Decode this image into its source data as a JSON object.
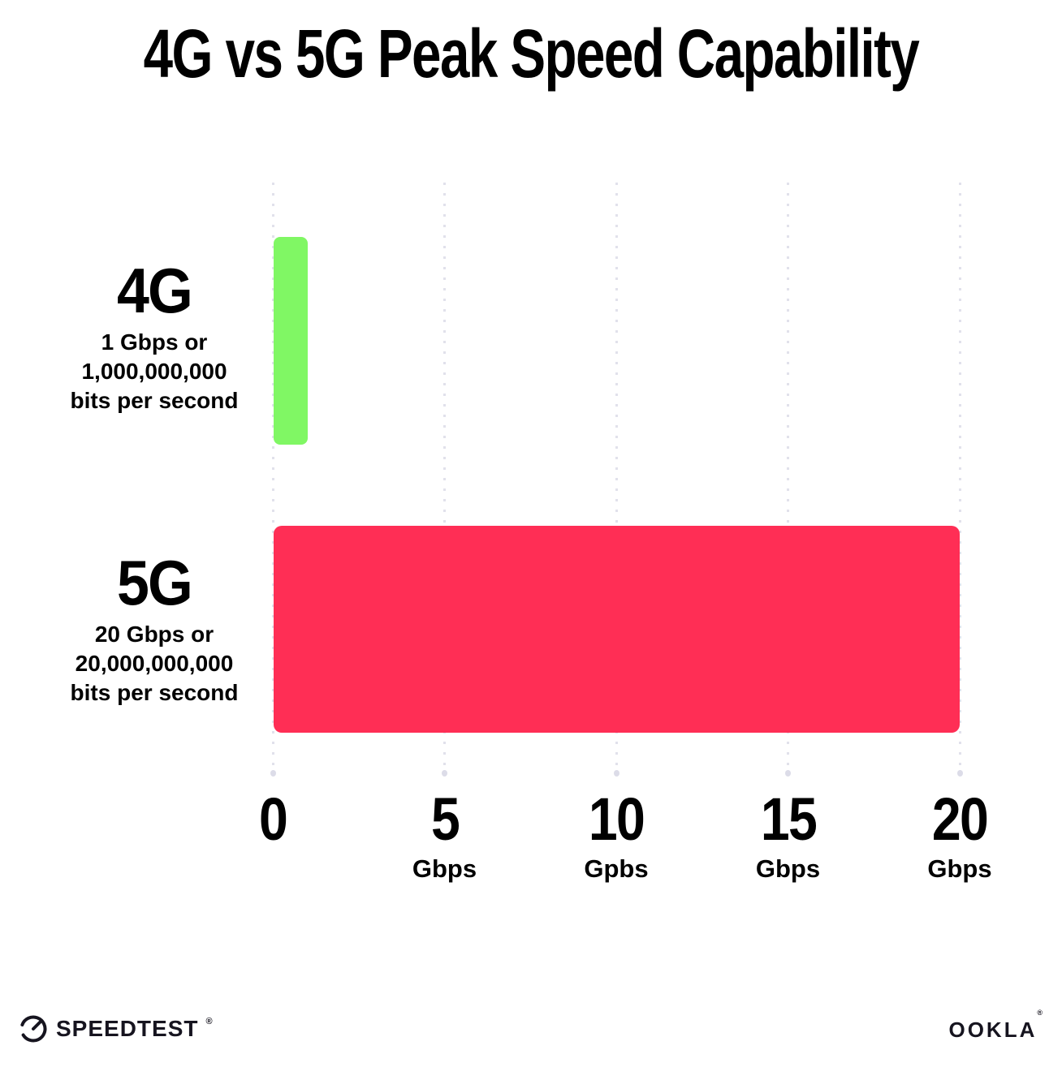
{
  "title": "4G vs 5G Peak Speed Capability",
  "chart_data": {
    "type": "bar",
    "orientation": "horizontal",
    "title": "4G vs 5G Peak Speed Capability",
    "categories": [
      "4G",
      "5G"
    ],
    "values": [
      1,
      20
    ],
    "value_unit": "Gbps",
    "category_sublabels": [
      [
        "1 Gbps or",
        "1,000,000,000",
        "bits per second"
      ],
      [
        "20 Gbps or",
        "20,000,000,000",
        "bits per second"
      ]
    ],
    "bar_colors": [
      "#80F764",
      "#FF2E55"
    ],
    "xlim": [
      0,
      20
    ],
    "x_ticks": [
      {
        "value": "0",
        "unit": ""
      },
      {
        "value": "5",
        "unit": "Gbps"
      },
      {
        "value": "10",
        "unit": "Gpbs"
      },
      {
        "value": "15",
        "unit": "Gbps"
      },
      {
        "value": "20",
        "unit": "Gbps"
      }
    ],
    "grid": "vertical-dotted",
    "legend": "none"
  },
  "footer": {
    "speedtest_label": "SPEEDTEST",
    "speedtest_reg_mark": "®",
    "ookla_label": "OOKLA",
    "ookla_reg_mark": "®"
  },
  "colors": {
    "background": "#FFFFFF",
    "text": "#000000",
    "gridline": "#E1E1EB",
    "bar_4g": "#80F764",
    "bar_5g": "#FF2E55"
  }
}
